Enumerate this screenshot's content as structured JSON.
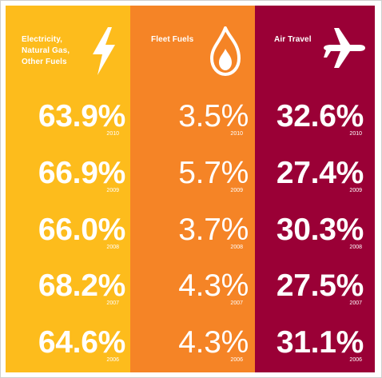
{
  "columns": [
    {
      "key": "energy",
      "label_lines": [
        "Electricity,",
        "Natural Gas,",
        "Other Fuels"
      ],
      "icon": "lightning-bolt-icon",
      "bg": "#FDBC1C",
      "values": [
        {
          "pct": "63.9%",
          "year": "2010"
        },
        {
          "pct": "66.9%",
          "year": "2009"
        },
        {
          "pct": "66.0%",
          "year": "2008"
        },
        {
          "pct": "68.2%",
          "year": "2007"
        },
        {
          "pct": "64.6%",
          "year": "2006"
        }
      ]
    },
    {
      "key": "fleet",
      "label_lines": [
        "Fleet Fuels"
      ],
      "icon": "flame-icon",
      "bg": "#F58426",
      "values": [
        {
          "pct": "3.5%",
          "year": "2010"
        },
        {
          "pct": "5.7%",
          "year": "2009"
        },
        {
          "pct": "3.7%",
          "year": "2008"
        },
        {
          "pct": "4.3%",
          "year": "2007"
        },
        {
          "pct": "4.3%",
          "year": "2006"
        }
      ]
    },
    {
      "key": "air",
      "label_lines": [
        "Air Travel"
      ],
      "icon": "airplane-icon",
      "bg": "#9A0036",
      "values": [
        {
          "pct": "32.6%",
          "year": "2010"
        },
        {
          "pct": "27.4%",
          "year": "2009"
        },
        {
          "pct": "30.3%",
          "year": "2008"
        },
        {
          "pct": "27.5%",
          "year": "2007"
        },
        {
          "pct": "31.1%",
          "year": "2006"
        }
      ]
    }
  ]
}
